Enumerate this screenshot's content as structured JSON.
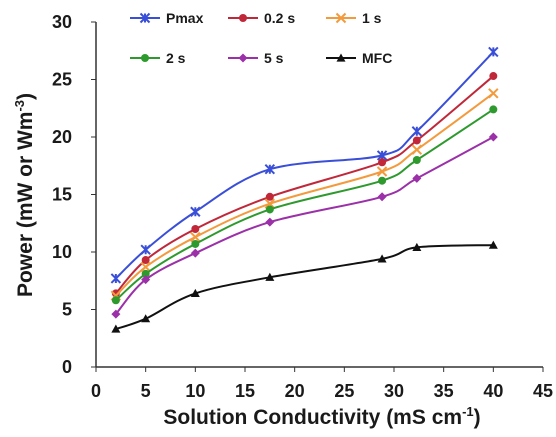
{
  "chart_data": {
    "type": "line",
    "x": [
      2,
      5,
      10,
      17.5,
      28.8,
      32.3,
      40
    ],
    "series": [
      {
        "name": "Pmax",
        "color": "#3a4fd8",
        "marker": "star",
        "values": [
          7.7,
          10.2,
          13.5,
          17.2,
          18.4,
          20.5,
          27.4
        ]
      },
      {
        "name": "0.2 s",
        "color": "#c0283a",
        "marker": "circle",
        "values": [
          6.4,
          9.3,
          12.0,
          14.8,
          17.8,
          19.7,
          25.3
        ]
      },
      {
        "name": "1 s",
        "color": "#f39a3c",
        "marker": "x",
        "values": [
          6.2,
          8.7,
          11.3,
          14.2,
          17.0,
          18.9,
          23.8
        ]
      },
      {
        "name": "2 s",
        "color": "#2e9a2e",
        "marker": "circle",
        "values": [
          5.8,
          8.1,
          10.7,
          13.7,
          16.2,
          18.0,
          22.4
        ]
      },
      {
        "name": "5 s",
        "color": "#9b30a8",
        "marker": "diamond",
        "values": [
          4.6,
          7.6,
          9.9,
          12.6,
          14.8,
          16.4,
          20.0
        ]
      },
      {
        "name": "MFC",
        "color": "#111111",
        "marker": "triangle",
        "values": [
          3.3,
          4.2,
          6.4,
          7.8,
          9.4,
          10.4,
          10.6
        ]
      }
    ],
    "xlim": [
      0,
      45
    ],
    "xticks": [
      0,
      5,
      10,
      15,
      20,
      25,
      30,
      35,
      40,
      45
    ],
    "ylim": [
      0,
      30
    ],
    "yticks": [
      0,
      5,
      10,
      15,
      20,
      25,
      30
    ],
    "xlabel": [
      "Solution Conductivity (mS cm",
      "-1",
      ")"
    ],
    "ylabel": [
      "Power (mW or Wm",
      "-3",
      ")"
    ],
    "smooth": true
  }
}
